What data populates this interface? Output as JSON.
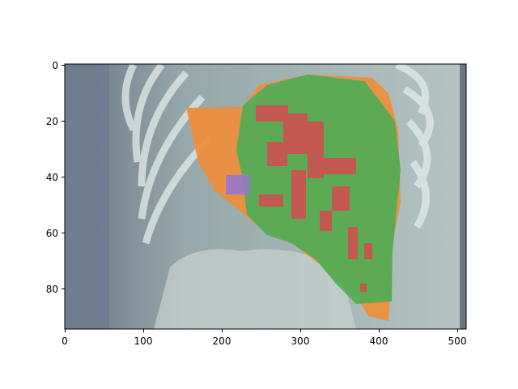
{
  "figure": {
    "x_ticks": [
      "0",
      "100",
      "200",
      "300",
      "400",
      "500"
    ],
    "y_ticks": [
      "0",
      "20",
      "40",
      "60",
      "80"
    ],
    "colors": {
      "background_scan": "#8e9ea2",
      "left_band": "#6f7b8e",
      "bone": "#e2ecea",
      "orange_region": "#ef8d3a",
      "green_region": "#54ad55",
      "red_region": "#cf4f52",
      "purple_region": "#9678cc"
    }
  }
}
